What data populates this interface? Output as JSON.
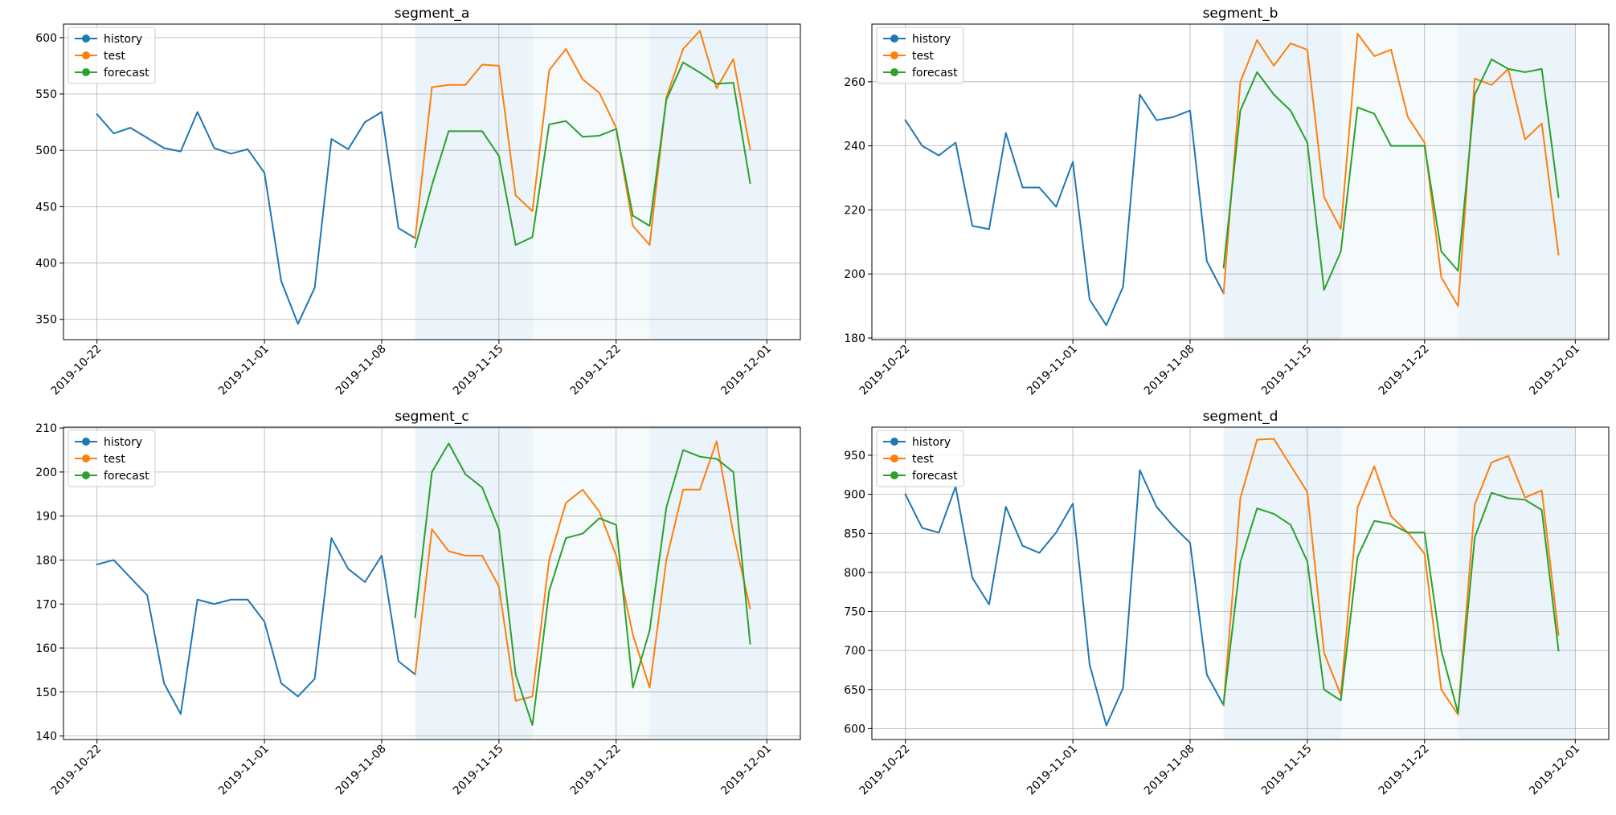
{
  "figure": {
    "colors": {
      "history": "#1f77b4",
      "test": "#ff7f0e",
      "forecast": "#2ca02c",
      "shade": "#d6eaf5",
      "grid": "#b0b0b0"
    },
    "legend_placement": "upper-left",
    "grid": true
  },
  "chart_data": [
    {
      "type": "line",
      "title": "segment_a",
      "xlabel": "",
      "ylabel": "",
      "x_ticks": [
        "2019-10-22",
        "2019-11-01",
        "2019-11-08",
        "2019-11-15",
        "2019-11-22",
        "2019-12-01"
      ],
      "y_ticks": [
        350,
        400,
        450,
        500,
        550,
        600
      ],
      "xlim": [
        "2019-10-20",
        "2019-12-03"
      ],
      "ylim": [
        332,
        612
      ],
      "shaded_intervals": [
        {
          "start": "2019-11-10",
          "end": "2019-11-17",
          "level": "darker"
        },
        {
          "start": "2019-11-17",
          "end": "2019-11-24",
          "level": "lighter"
        },
        {
          "start": "2019-11-24",
          "end": "2019-12-01",
          "level": "darker"
        }
      ],
      "legend": [
        "history",
        "test",
        "forecast"
      ],
      "series": [
        {
          "name": "history",
          "x_start": "2019-10-22",
          "values": [
            532,
            515,
            520,
            511,
            502,
            499,
            534,
            502,
            497,
            501,
            480,
            384,
            346,
            378,
            510,
            501,
            525,
            534,
            431,
            422
          ]
        },
        {
          "name": "test",
          "x_start": "2019-11-10",
          "values": [
            422,
            556,
            558,
            558,
            576,
            575,
            460,
            446,
            571,
            590,
            563,
            551,
            520,
            433,
            416,
            547,
            590,
            606,
            555,
            581,
            501
          ]
        },
        {
          "name": "forecast",
          "x_start": "2019-11-10",
          "values": [
            414,
            469,
            517,
            517,
            517,
            495,
            416,
            423,
            523,
            526,
            512,
            513,
            519,
            442,
            433,
            545,
            578,
            569,
            559,
            560,
            471
          ]
        }
      ]
    },
    {
      "type": "line",
      "title": "segment_b",
      "xlabel": "",
      "ylabel": "",
      "x_ticks": [
        "2019-10-22",
        "2019-11-01",
        "2019-11-08",
        "2019-11-15",
        "2019-11-22",
        "2019-12-01"
      ],
      "y_ticks": [
        180,
        200,
        220,
        240,
        260
      ],
      "xlim": [
        "2019-10-20",
        "2019-12-03"
      ],
      "ylim": [
        179.5,
        278
      ],
      "shaded_intervals": [
        {
          "start": "2019-11-10",
          "end": "2019-11-17",
          "level": "darker"
        },
        {
          "start": "2019-11-17",
          "end": "2019-11-24",
          "level": "lighter"
        },
        {
          "start": "2019-11-24",
          "end": "2019-12-01",
          "level": "darker"
        }
      ],
      "legend": [
        "history",
        "test",
        "forecast"
      ],
      "series": [
        {
          "name": "history",
          "x_start": "2019-10-22",
          "values": [
            248,
            240,
            237,
            241,
            215,
            214,
            244,
            227,
            227,
            221,
            235,
            192,
            184,
            196,
            256,
            248,
            249,
            251,
            204,
            194
          ]
        },
        {
          "name": "test",
          "x_start": "2019-11-10",
          "values": [
            194,
            260,
            273,
            265,
            272,
            270,
            224,
            214,
            275,
            268,
            270,
            249,
            241,
            199,
            190,
            261,
            259,
            264,
            242,
            247,
            206
          ]
        },
        {
          "name": "forecast",
          "x_start": "2019-11-10",
          "values": [
            202,
            251,
            263,
            256,
            251,
            241,
            195,
            207,
            252,
            250,
            240,
            240,
            240,
            207,
            201,
            256,
            267,
            264,
            263,
            264,
            224
          ]
        }
      ]
    },
    {
      "type": "line",
      "title": "segment_c",
      "xlabel": "",
      "ylabel": "",
      "x_ticks": [
        "2019-10-22",
        "2019-11-01",
        "2019-11-08",
        "2019-11-15",
        "2019-11-22",
        "2019-12-01"
      ],
      "y_ticks": [
        140,
        150,
        160,
        170,
        180,
        190,
        200,
        210
      ],
      "xlim": [
        "2019-10-20",
        "2019-12-03"
      ],
      "ylim": [
        139.2,
        210.2
      ],
      "shaded_intervals": [
        {
          "start": "2019-11-10",
          "end": "2019-11-17",
          "level": "darker"
        },
        {
          "start": "2019-11-17",
          "end": "2019-11-24",
          "level": "lighter"
        },
        {
          "start": "2019-11-24",
          "end": "2019-12-01",
          "level": "darker"
        }
      ],
      "legend": [
        "history",
        "test",
        "forecast"
      ],
      "series": [
        {
          "name": "history",
          "x_start": "2019-10-22",
          "values": [
            179,
            180,
            176,
            172,
            152,
            145,
            171,
            170,
            171,
            171,
            166,
            152,
            149,
            153,
            185,
            178,
            175,
            181,
            157,
            154
          ]
        },
        {
          "name": "test",
          "x_start": "2019-11-10",
          "values": [
            154,
            187,
            182,
            181,
            181,
            174,
            148,
            149,
            180,
            193,
            196,
            191,
            181,
            163,
            151,
            180,
            196,
            196,
            207,
            186,
            169
          ]
        },
        {
          "name": "forecast",
          "x_start": "2019-11-10",
          "values": [
            167,
            200,
            206.5,
            199.5,
            196.5,
            187,
            154,
            142.5,
            173,
            185,
            186,
            189.5,
            188,
            151,
            164,
            192,
            205,
            203.5,
            203,
            200,
            161
          ]
        }
      ]
    },
    {
      "type": "line",
      "title": "segment_d",
      "xlabel": "",
      "ylabel": "",
      "x_ticks": [
        "2019-10-22",
        "2019-11-01",
        "2019-11-08",
        "2019-11-15",
        "2019-11-22",
        "2019-12-01"
      ],
      "y_ticks": [
        600,
        650,
        700,
        750,
        800,
        850,
        900,
        950
      ],
      "xlim": [
        "2019-10-20",
        "2019-12-03"
      ],
      "ylim": [
        586,
        986
      ],
      "shaded_intervals": [
        {
          "start": "2019-11-10",
          "end": "2019-11-17",
          "level": "darker"
        },
        {
          "start": "2019-11-17",
          "end": "2019-11-24",
          "level": "lighter"
        },
        {
          "start": "2019-11-24",
          "end": "2019-12-01",
          "level": "darker"
        }
      ],
      "legend": [
        "history",
        "test",
        "forecast"
      ],
      "series": [
        {
          "name": "history",
          "x_start": "2019-10-22",
          "values": [
            900,
            857,
            851,
            910,
            793,
            759,
            884,
            834,
            825,
            851,
            888,
            682,
            604,
            652,
            931,
            884,
            859,
            838,
            669,
            630
          ]
        },
        {
          "name": "test",
          "x_start": "2019-11-10",
          "values": [
            630,
            895,
            970,
            971,
            937,
            903,
            697,
            643,
            883,
            936,
            872,
            851,
            824,
            650,
            618,
            887,
            941,
            949,
            896,
            905,
            720
          ]
        },
        {
          "name": "forecast",
          "x_start": "2019-11-10",
          "values": [
            632,
            813,
            882,
            875,
            861,
            814,
            650,
            636,
            820,
            866,
            862,
            851,
            851,
            700,
            620,
            845,
            902,
            895,
            893,
            880,
            700
          ]
        }
      ]
    }
  ]
}
